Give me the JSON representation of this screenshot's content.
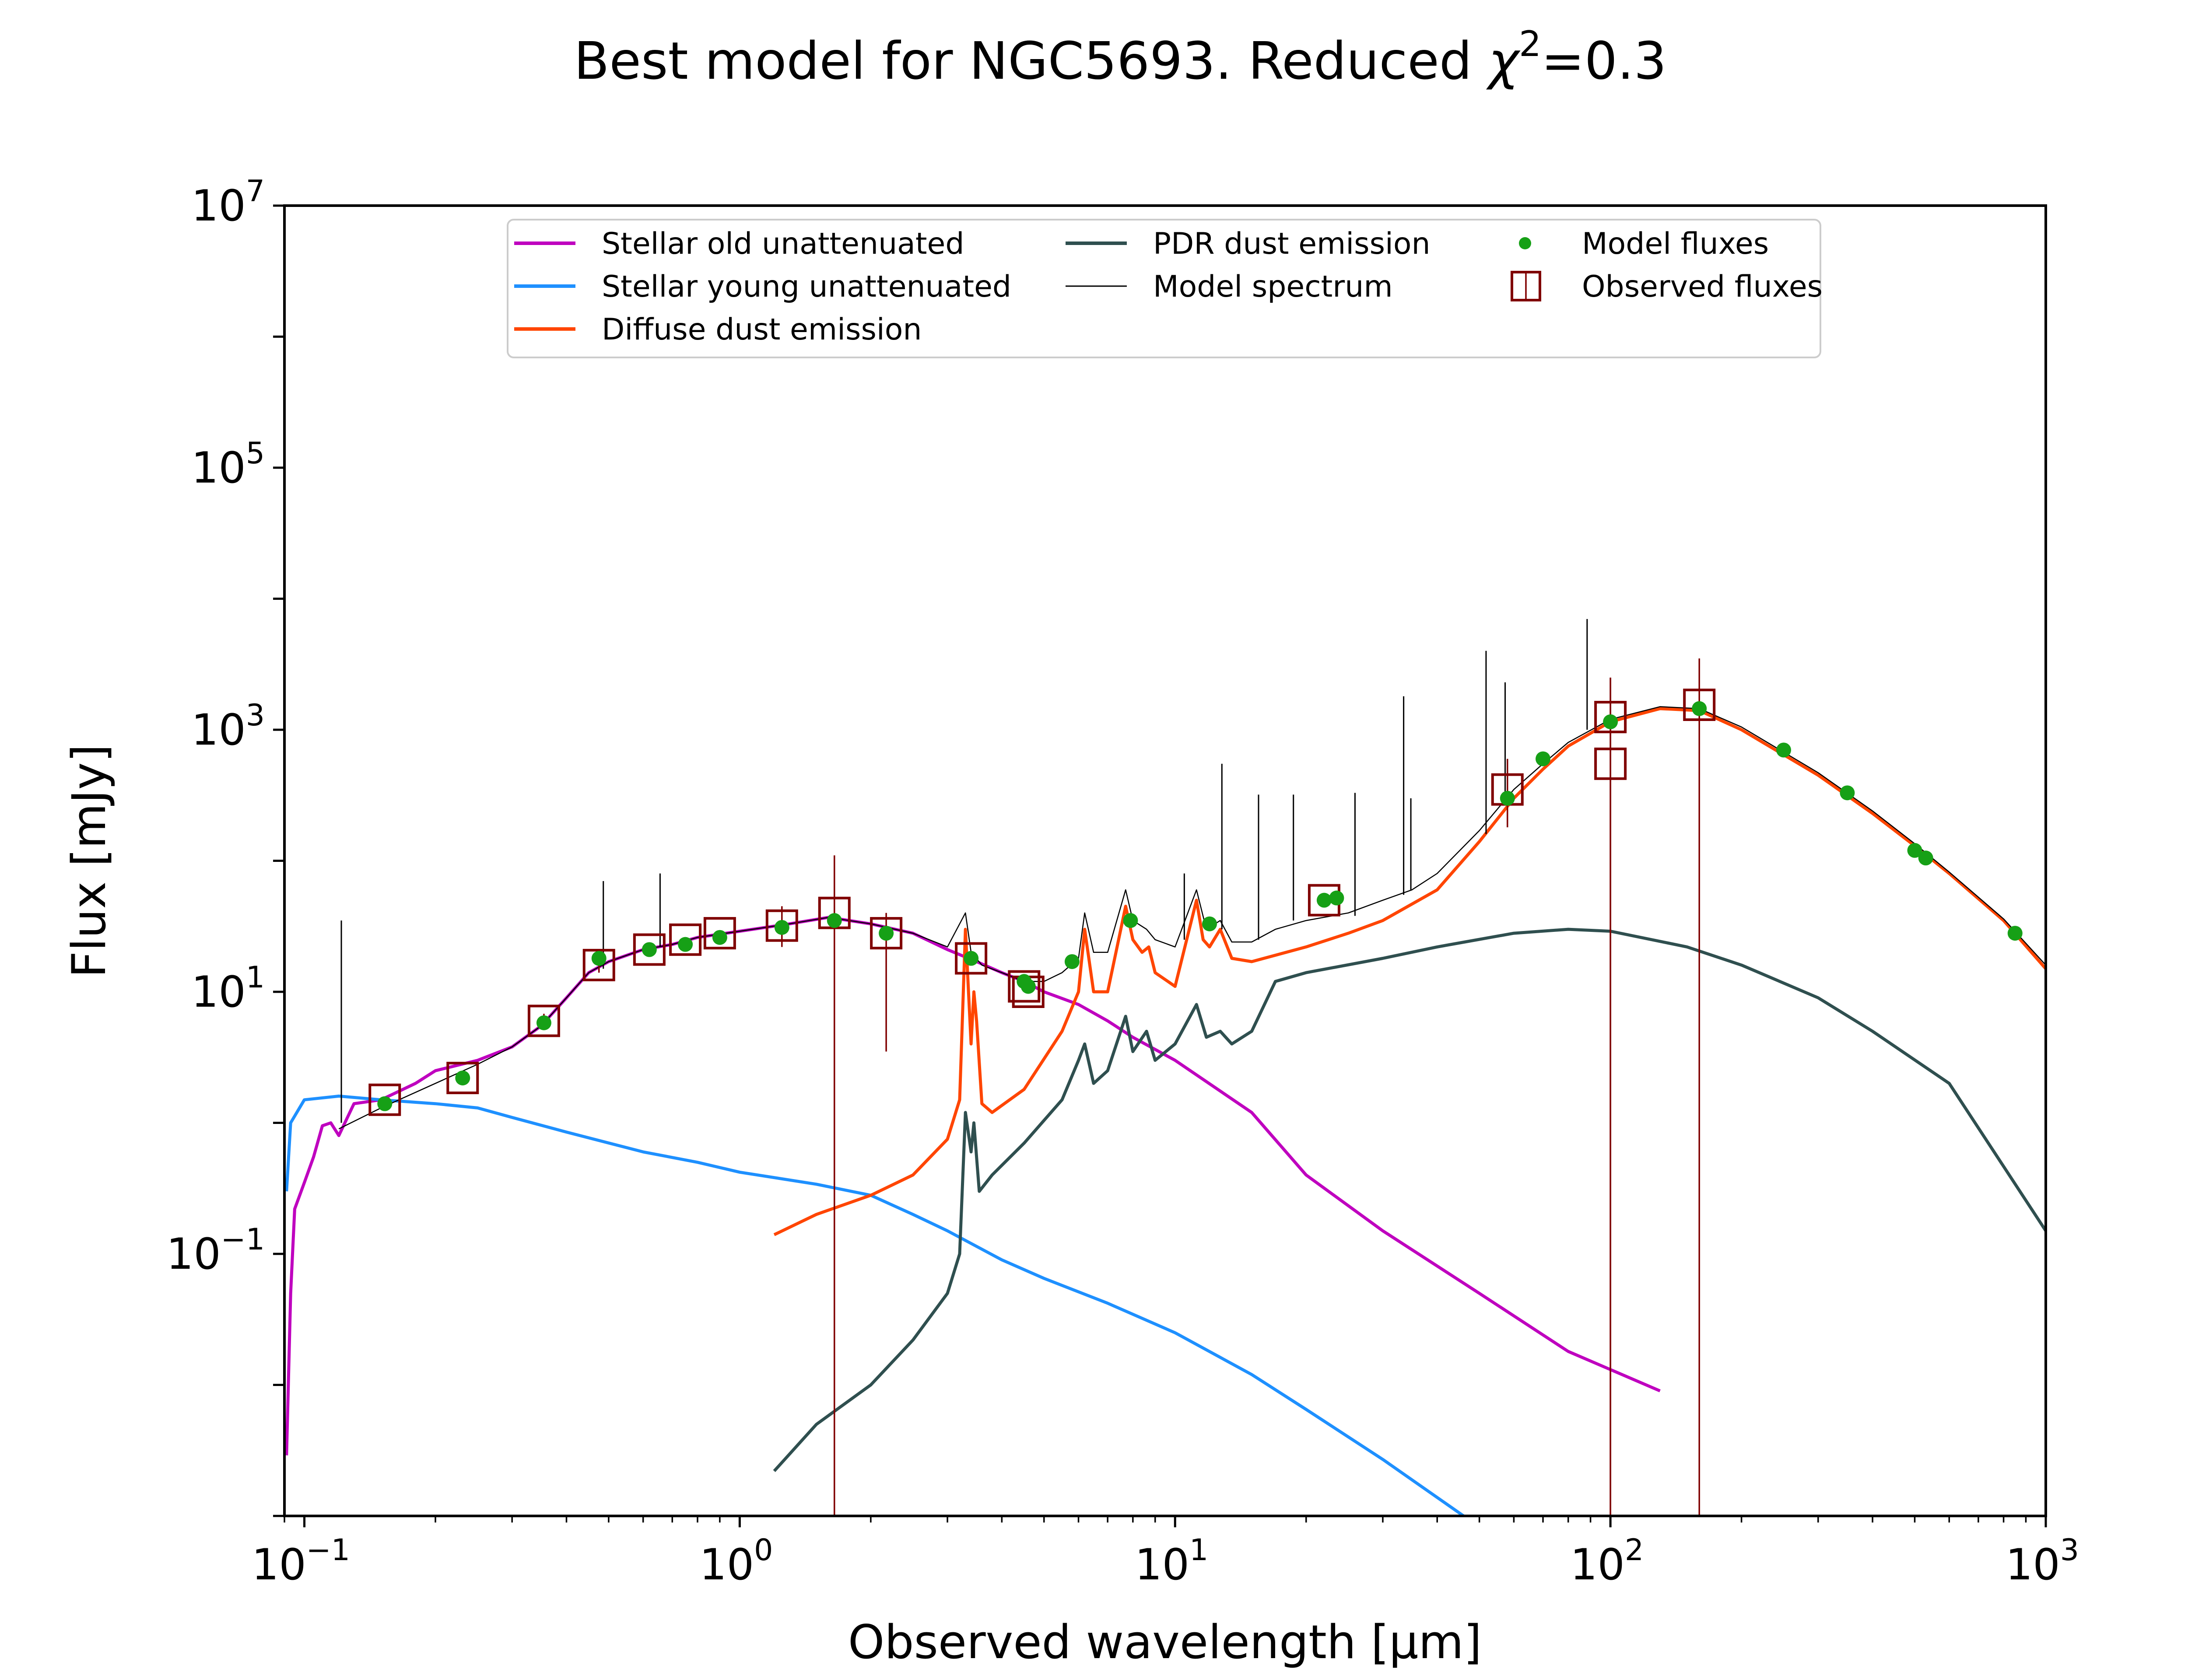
{
  "chart_data": {
    "type": "line",
    "title_main": "Best model for NGC5693. Reduced ",
    "title_chi": "χ",
    "title_sup": "2",
    "title_end": "=0.3",
    "xlabel": "Observed wavelength [μm]",
    "ylabel": "Flux [mJy]",
    "xscale": "log",
    "yscale": "log",
    "xlim": [
      0.09,
      1000
    ],
    "ylim": [
      0.001,
      10000000
    ],
    "x_ticks": [
      {
        "value": 0.1,
        "base": "10",
        "exp": "−1"
      },
      {
        "value": 1,
        "base": "10",
        "exp": "0"
      },
      {
        "value": 10,
        "base": "10",
        "exp": "1"
      },
      {
        "value": 100,
        "base": "10",
        "exp": "2"
      },
      {
        "value": 1000,
        "base": "10",
        "exp": "3"
      }
    ],
    "y_ticks": [
      {
        "value": 0.1,
        "base": "10",
        "exp": "−1"
      },
      {
        "value": 10,
        "base": "10",
        "exp": "1"
      },
      {
        "value": 1000,
        "base": "10",
        "exp": "3"
      },
      {
        "value": 100000,
        "base": "10",
        "exp": "5"
      },
      {
        "value": 10000000,
        "base": "10",
        "exp": "7"
      }
    ],
    "legend_position": "top-center",
    "legend": [
      {
        "label": "Stellar old unattenuated",
        "kind": "line",
        "color": "#bf00bf"
      },
      {
        "label": "Stellar young unattenuated",
        "kind": "line",
        "color": "#1e90ff"
      },
      {
        "label": "Diffuse dust emission",
        "kind": "line",
        "color": "#ff4500"
      },
      {
        "label": "PDR dust emission",
        "kind": "line",
        "color": "#2f4f4f"
      },
      {
        "label": "Model spectrum",
        "kind": "thin-line",
        "color": "#000000"
      },
      {
        "label": "Model fluxes",
        "kind": "dot",
        "color": "#16a016"
      },
      {
        "label": "Observed fluxes",
        "kind": "square",
        "color": "#800000"
      }
    ],
    "series": [
      {
        "name": "Stellar old unattenuated",
        "color": "#bf00bf",
        "width": 7,
        "points": [
          [
            0.091,
            0.0029
          ],
          [
            0.093,
            0.05
          ],
          [
            0.095,
            0.22
          ],
          [
            0.1,
            0.35
          ],
          [
            0.105,
            0.55
          ],
          [
            0.11,
            0.95
          ],
          [
            0.115,
            1.0
          ],
          [
            0.12,
            0.8
          ],
          [
            0.13,
            1.4
          ],
          [
            0.15,
            1.5
          ],
          [
            0.18,
            2.0
          ],
          [
            0.2,
            2.5
          ],
          [
            0.25,
            3.0
          ],
          [
            0.3,
            3.8
          ],
          [
            0.35,
            5.5
          ],
          [
            0.4,
            9.0
          ],
          [
            0.45,
            14
          ],
          [
            0.5,
            17
          ],
          [
            0.6,
            21
          ],
          [
            0.7,
            23
          ],
          [
            0.8,
            26
          ],
          [
            1.0,
            29
          ],
          [
            1.3,
            33
          ],
          [
            1.6,
            37
          ],
          [
            2.0,
            33
          ],
          [
            2.5,
            28
          ],
          [
            3.0,
            21
          ],
          [
            3.5,
            17
          ],
          [
            4.0,
            14
          ],
          [
            4.5,
            12
          ],
          [
            5.0,
            10
          ],
          [
            6.0,
            8.0
          ],
          [
            7.0,
            6.0
          ],
          [
            8.0,
            4.5
          ],
          [
            10.0,
            3.0
          ],
          [
            15,
            1.2
          ],
          [
            20,
            0.4
          ],
          [
            30,
            0.15
          ],
          [
            50,
            0.05
          ],
          [
            80,
            0.018
          ],
          [
            130,
            0.009
          ]
        ]
      },
      {
        "name": "Stellar young unattenuated",
        "color": "#1e90ff",
        "width": 7,
        "points": [
          [
            0.091,
            0.3
          ],
          [
            0.093,
            1.0
          ],
          [
            0.1,
            1.5
          ],
          [
            0.12,
            1.6
          ],
          [
            0.15,
            1.5
          ],
          [
            0.2,
            1.4
          ],
          [
            0.25,
            1.3
          ],
          [
            0.3,
            1.1
          ],
          [
            0.4,
            0.85
          ],
          [
            0.6,
            0.6
          ],
          [
            0.8,
            0.5
          ],
          [
            1.0,
            0.42
          ],
          [
            1.5,
            0.34
          ],
          [
            2.0,
            0.28
          ],
          [
            2.5,
            0.2
          ],
          [
            3.0,
            0.15
          ],
          [
            4.0,
            0.09
          ],
          [
            5.0,
            0.065
          ],
          [
            7.0,
            0.042
          ],
          [
            10,
            0.025
          ],
          [
            15,
            0.012
          ],
          [
            20,
            0.0065
          ],
          [
            30,
            0.0027
          ],
          [
            46,
            0.001
          ]
        ]
      },
      {
        "name": "Diffuse dust emission",
        "color": "#ff4500",
        "width": 7,
        "points": [
          [
            1.2,
            0.14
          ],
          [
            1.5,
            0.2
          ],
          [
            2.0,
            0.28
          ],
          [
            2.5,
            0.4
          ],
          [
            3.0,
            0.75
          ],
          [
            3.2,
            1.5
          ],
          [
            3.3,
            30
          ],
          [
            3.4,
            4.0
          ],
          [
            3.45,
            10
          ],
          [
            3.5,
            6.0
          ],
          [
            3.6,
            1.4
          ],
          [
            3.8,
            1.2
          ],
          [
            4.5,
            1.8
          ],
          [
            5.5,
            5.0
          ],
          [
            6.0,
            10
          ],
          [
            6.2,
            30
          ],
          [
            6.5,
            10
          ],
          [
            7.0,
            10
          ],
          [
            7.7,
            45
          ],
          [
            8.0,
            25
          ],
          [
            8.4,
            20
          ],
          [
            8.7,
            22
          ],
          [
            9.0,
            14
          ],
          [
            10,
            11
          ],
          [
            11.2,
            50
          ],
          [
            11.6,
            25
          ],
          [
            12,
            22
          ],
          [
            12.7,
            30
          ],
          [
            13.5,
            18
          ],
          [
            15,
            17
          ],
          [
            20,
            22
          ],
          [
            25,
            28
          ],
          [
            30,
            35
          ],
          [
            40,
            60
          ],
          [
            50,
            140
          ],
          [
            60,
            300
          ],
          [
            70,
            500
          ],
          [
            80,
            750
          ],
          [
            100,
            1150
          ],
          [
            130,
            1450
          ],
          [
            160,
            1400
          ],
          [
            200,
            1000
          ],
          [
            300,
            450
          ],
          [
            400,
            230
          ],
          [
            500,
            130
          ],
          [
            600,
            80
          ],
          [
            800,
            35
          ],
          [
            1000,
            15
          ]
        ]
      },
      {
        "name": "PDR dust emission",
        "color": "#2f4f4f",
        "width": 7,
        "points": [
          [
            1.2,
            0.0022
          ],
          [
            1.5,
            0.005
          ],
          [
            2.0,
            0.01
          ],
          [
            2.5,
            0.022
          ],
          [
            3.0,
            0.05
          ],
          [
            3.2,
            0.1
          ],
          [
            3.3,
            1.2
          ],
          [
            3.4,
            0.6
          ],
          [
            3.45,
            1.0
          ],
          [
            3.55,
            0.3
          ],
          [
            3.8,
            0.4
          ],
          [
            4.5,
            0.7
          ],
          [
            5.5,
            1.5
          ],
          [
            6.0,
            3.0
          ],
          [
            6.2,
            4.0
          ],
          [
            6.5,
            2.0
          ],
          [
            7.0,
            2.5
          ],
          [
            7.7,
            6.5
          ],
          [
            8.0,
            3.5
          ],
          [
            8.6,
            5.0
          ],
          [
            9.0,
            3.0
          ],
          [
            10,
            4.0
          ],
          [
            11.2,
            8.0
          ],
          [
            11.8,
            4.5
          ],
          [
            12.7,
            5.0
          ],
          [
            13.5,
            4.0
          ],
          [
            15,
            5.0
          ],
          [
            17,
            12
          ],
          [
            20,
            14
          ],
          [
            30,
            18
          ],
          [
            40,
            22
          ],
          [
            60,
            28
          ],
          [
            80,
            30
          ],
          [
            100,
            29
          ],
          [
            150,
            22
          ],
          [
            200,
            16
          ],
          [
            300,
            9
          ],
          [
            400,
            5
          ],
          [
            600,
            2
          ],
          [
            1000,
            0.15
          ]
        ]
      },
      {
        "name": "Model spectrum",
        "color": "#000000",
        "width": 2.5,
        "points": [
          [
            0.12,
            0.9
          ],
          [
            0.15,
            1.3
          ],
          [
            0.2,
            2.0
          ],
          [
            0.25,
            2.8
          ],
          [
            0.3,
            3.8
          ],
          [
            0.35,
            5.5
          ],
          [
            0.4,
            9.0
          ],
          [
            0.45,
            14
          ],
          [
            0.5,
            17
          ],
          [
            0.6,
            21
          ],
          [
            0.7,
            23
          ],
          [
            0.8,
            26
          ],
          [
            1.0,
            29
          ],
          [
            1.3,
            33
          ],
          [
            1.6,
            37
          ],
          [
            2.0,
            33
          ],
          [
            2.5,
            28
          ],
          [
            3.0,
            22
          ],
          [
            3.3,
            40
          ],
          [
            3.4,
            20
          ],
          [
            3.6,
            16
          ],
          [
            4.0,
            14
          ],
          [
            4.5,
            12
          ],
          [
            5.0,
            12
          ],
          [
            5.5,
            14
          ],
          [
            6.0,
            18
          ],
          [
            6.2,
            40
          ],
          [
            6.5,
            20
          ],
          [
            7.0,
            20
          ],
          [
            7.7,
            60
          ],
          [
            8.0,
            35
          ],
          [
            8.6,
            30
          ],
          [
            9.0,
            25
          ],
          [
            10,
            22
          ],
          [
            11.2,
            60
          ],
          [
            11.8,
            30
          ],
          [
            12.7,
            35
          ],
          [
            13.5,
            24
          ],
          [
            15,
            24
          ],
          [
            17,
            30
          ],
          [
            20,
            35
          ],
          [
            25,
            40
          ],
          [
            30,
            50
          ],
          [
            35,
            60
          ],
          [
            40,
            80
          ],
          [
            50,
            170
          ],
          [
            60,
            350
          ],
          [
            70,
            550
          ],
          [
            80,
            800
          ],
          [
            100,
            1200
          ],
          [
            130,
            1500
          ],
          [
            160,
            1450
          ],
          [
            200,
            1050
          ],
          [
            300,
            470
          ],
          [
            400,
            240
          ],
          [
            500,
            135
          ],
          [
            600,
            82
          ],
          [
            800,
            36
          ],
          [
            1000,
            16
          ]
        ]
      }
    ],
    "emission_lines": [
      {
        "x": 0.1216,
        "y0": 1.0,
        "y1": 35
      },
      {
        "x": 0.4861,
        "y0": 15,
        "y1": 70
      },
      {
        "x": 0.6563,
        "y0": 22,
        "y1": 80
      },
      {
        "x": 18.7,
        "y0": 35,
        "y1": 320
      },
      {
        "x": 25.9,
        "y0": 38,
        "y1": 330
      },
      {
        "x": 33.5,
        "y0": 55,
        "y1": 1800
      },
      {
        "x": 34.8,
        "y0": 60,
        "y1": 300
      },
      {
        "x": 51.8,
        "y0": 160,
        "y1": 4000
      },
      {
        "x": 57.3,
        "y0": 290,
        "y1": 2300
      },
      {
        "x": 88.4,
        "y0": 1000,
        "y1": 7000
      },
      {
        "x": 12.81,
        "y0": 30,
        "y1": 550
      },
      {
        "x": 15.55,
        "y0": 25,
        "y1": 320
      },
      {
        "x": 10.5,
        "y0": 25,
        "y1": 80
      }
    ],
    "model_fluxes": [
      [
        0.153,
        1.4
      ],
      [
        0.231,
        2.2
      ],
      [
        0.355,
        5.8
      ],
      [
        0.475,
        18
      ],
      [
        0.62,
        21
      ],
      [
        0.75,
        23
      ],
      [
        0.9,
        26
      ],
      [
        1.25,
        31
      ],
      [
        1.65,
        35
      ],
      [
        2.17,
        28
      ],
      [
        3.4,
        18
      ],
      [
        4.5,
        12
      ],
      [
        4.6,
        11
      ],
      [
        5.8,
        17
      ],
      [
        7.9,
        35
      ],
      [
        12,
        33
      ],
      [
        22,
        50
      ],
      [
        23.5,
        52
      ],
      [
        58,
        300
      ],
      [
        70,
        600
      ],
      [
        100,
        1150
      ],
      [
        160,
        1450
      ],
      [
        250,
        700
      ],
      [
        350,
        330
      ],
      [
        500,
        120
      ],
      [
        530,
        105
      ],
      [
        850,
        28
      ]
    ],
    "observed_fluxes": [
      {
        "x": 0.153,
        "y": 1.5
      },
      {
        "x": 0.231,
        "y": 2.2
      },
      {
        "x": 0.355,
        "y": 6.0,
        "err": [
          5.2,
          6.8
        ]
      },
      {
        "x": 0.475,
        "y": 16,
        "err": [
          14,
          18
        ]
      },
      {
        "x": 0.62,
        "y": 21
      },
      {
        "x": 0.75,
        "y": 25
      },
      {
        "x": 0.9,
        "y": 28
      },
      {
        "x": 1.25,
        "y": 32,
        "err": [
          22,
          45
        ]
      },
      {
        "x": 1.65,
        "y": 40,
        "err": [
          0.001,
          110
        ]
      },
      {
        "x": 2.17,
        "y": 28,
        "err": [
          3.5,
          40
        ]
      },
      {
        "x": 3.4,
        "y": 18
      },
      {
        "x": 4.5,
        "y": 11
      },
      {
        "x": 4.6,
        "y": 10
      },
      {
        "x": 22,
        "y": 50
      },
      {
        "x": 58,
        "y": 350,
        "err": [
          180,
          600
        ]
      },
      {
        "x": 100,
        "y": 1250,
        "err": [
          0.001,
          2500
        ]
      },
      {
        "x": 100,
        "y": 550,
        "err": [
          0.001,
          2500
        ]
      },
      {
        "x": 160,
        "y": 1550,
        "err": [
          0.001,
          3500
        ]
      }
    ]
  }
}
